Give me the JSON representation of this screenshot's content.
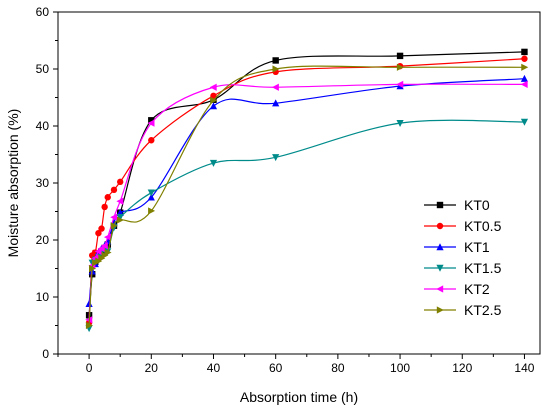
{
  "chart_data": {
    "type": "line",
    "title": "",
    "xlabel": "Absorption time (h)",
    "ylabel": "Moisture absorption (%)",
    "xlim": [
      -10,
      145
    ],
    "ylim": [
      0,
      60
    ],
    "xticks": [
      0,
      20,
      40,
      60,
      80,
      100,
      120,
      140
    ],
    "yticks": [
      0,
      10,
      20,
      30,
      40,
      50,
      60
    ],
    "grid": false,
    "legend_position": "right",
    "x": [
      0,
      1,
      2,
      3,
      4,
      5,
      6,
      8,
      10,
      20,
      40,
      60,
      100,
      140
    ],
    "series": [
      {
        "name": "KT0",
        "color": "#000000",
        "marker": "square",
        "values": [
          6.8,
          14.0,
          16.2,
          17.3,
          18.0,
          18.6,
          19.2,
          22.5,
          24.8,
          41.0,
          44.6,
          51.5,
          52.3,
          53.0
        ]
      },
      {
        "name": "KT0.5",
        "color": "#ff0000",
        "marker": "circle",
        "values": [
          5.5,
          17.3,
          17.8,
          21.2,
          22.0,
          25.8,
          27.5,
          28.8,
          30.2,
          37.5,
          45.3,
          49.5,
          50.5,
          51.8
        ]
      },
      {
        "name": "KT1",
        "color": "#0000ff",
        "marker": "triangle-up",
        "values": [
          8.8,
          14.5,
          15.8,
          17.8,
          18.5,
          19.0,
          19.8,
          23.0,
          24.8,
          27.5,
          43.5,
          44.0,
          47.0,
          48.3
        ]
      },
      {
        "name": "KT1.5",
        "color": "#008b8b",
        "marker": "triangle-down",
        "values": [
          4.5,
          16.0,
          16.5,
          17.0,
          17.8,
          18.3,
          18.0,
          22.2,
          24.0,
          28.3,
          33.5,
          34.5,
          40.5,
          40.7
        ]
      },
      {
        "name": "KT2",
        "color": "#ff00ff",
        "marker": "triangle-left",
        "values": [
          6.0,
          15.5,
          16.8,
          18.0,
          18.5,
          19.0,
          20.5,
          24.0,
          26.8,
          40.5,
          46.8,
          46.8,
          47.3,
          47.3
        ]
      },
      {
        "name": "KT2.5",
        "color": "#808000",
        "marker": "triangle-right",
        "values": [
          5.0,
          15.0,
          16.0,
          16.3,
          16.8,
          17.3,
          17.8,
          22.5,
          23.5,
          25.1,
          44.5,
          50.0,
          50.3,
          50.3
        ]
      }
    ]
  }
}
